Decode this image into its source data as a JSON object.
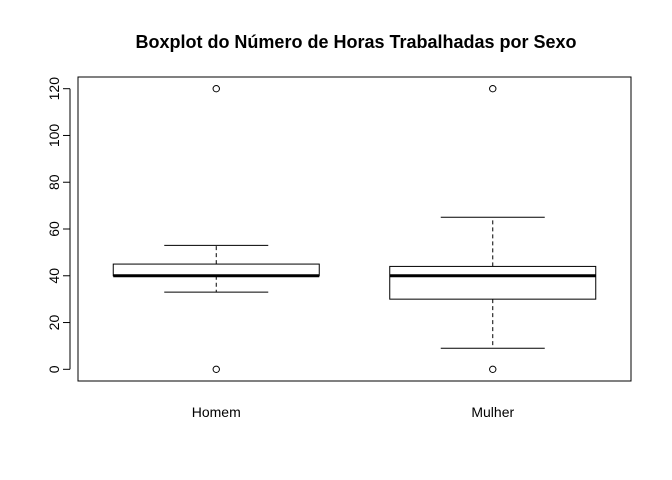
{
  "chart_data": {
    "type": "boxplot",
    "title": "Boxplot do Número de Horas Trabalhadas por Sexo",
    "xlabel": "",
    "ylabel": "",
    "ylim": [
      -5,
      125
    ],
    "yticks": [
      0,
      20,
      40,
      60,
      80,
      100,
      120
    ],
    "grid": false,
    "categories": [
      "Homem",
      "Mulher"
    ],
    "boxes": [
      {
        "category": "Homem",
        "whisker_low": 33,
        "q1": 40,
        "median": 40,
        "q3": 45,
        "whisker_high": 53,
        "outliers": [
          0,
          120
        ]
      },
      {
        "category": "Mulher",
        "whisker_low": 9,
        "q1": 30,
        "median": 40,
        "q3": 44,
        "whisker_high": 65,
        "outliers": [
          0,
          120
        ]
      }
    ],
    "colors": {
      "stroke": "#000000",
      "background": "#ffffff"
    }
  }
}
